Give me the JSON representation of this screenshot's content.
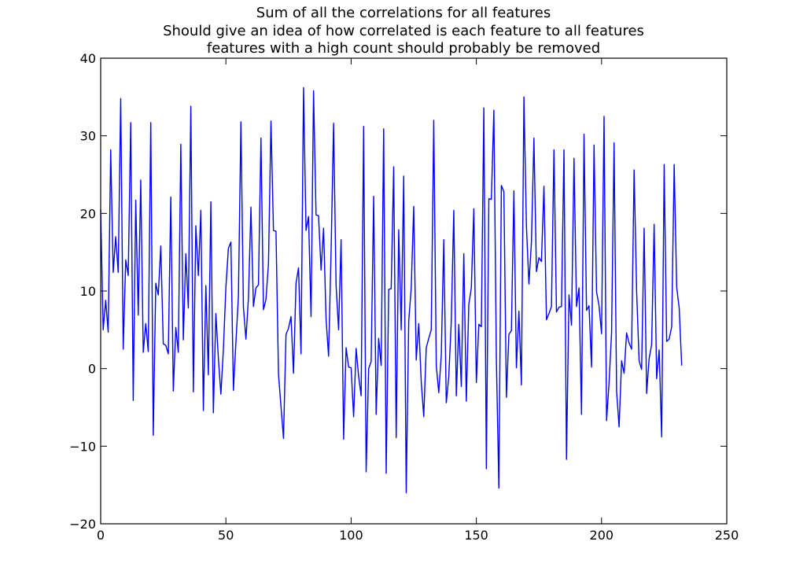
{
  "chart_data": {
    "type": "line",
    "title_lines": [
      "Sum of all the correlations for all features",
      "Should give an idea of how correlated is each feature to all features",
      "features with a high count should probably be removed"
    ],
    "xlabel": "",
    "ylabel": "",
    "xlim": [
      0,
      250
    ],
    "ylim": [
      -20,
      40
    ],
    "xticks": [
      0,
      50,
      100,
      150,
      200,
      250
    ],
    "xtick_labels": [
      "0",
      "50",
      "100",
      "150",
      "200",
      "250"
    ],
    "yticks": [
      -20,
      -10,
      0,
      10,
      20,
      30,
      40
    ],
    "ytick_labels": [
      "−20",
      "−10",
      "0",
      "10",
      "20",
      "30",
      "40"
    ],
    "grid": false,
    "line_color": "#0000ff",
    "series": [
      {
        "x_start": 0,
        "x_step": 1,
        "values": [
          20.5,
          5.0,
          8.8,
          4.7,
          28.2,
          12.4,
          17.0,
          12.4,
          34.8,
          2.5,
          14.0,
          12.0,
          31.7,
          -4.1,
          21.7,
          6.9,
          24.3,
          2.1,
          5.8,
          2.2,
          31.7,
          -8.6,
          11.0,
          9.5,
          15.8,
          3.2,
          3.0,
          1.9,
          22.1,
          -2.9,
          5.3,
          2.1,
          28.9,
          3.7,
          14.8,
          7.8,
          33.8,
          -3.0,
          18.4,
          12.0,
          20.4,
          -5.4,
          10.7,
          -0.8,
          21.5,
          -5.7,
          7.1,
          1.3,
          -3.3,
          2.5,
          10.5,
          15.5,
          16.3,
          -2.8,
          3.4,
          9.3,
          31.8,
          7.9,
          3.8,
          9.1,
          20.8,
          8.0,
          10.4,
          10.8,
          29.7,
          7.6,
          8.9,
          13.5,
          31.9,
          17.8,
          17.7,
          -0.7,
          -4.9,
          -9.0,
          4.4,
          5.2,
          6.7,
          -0.6,
          11.0,
          13.0,
          1.9,
          36.2,
          17.8,
          19.6,
          6.7,
          35.8,
          19.8,
          19.7,
          12.7,
          18.1,
          6.4,
          1.6,
          15.0,
          31.6,
          10.7,
          5.0,
          16.6,
          -9.1,
          2.7,
          0.2,
          0.1,
          -6.2,
          2.6,
          -1.0,
          -3.5,
          31.2,
          -13.3,
          0.0,
          0.9,
          22.2,
          -5.9,
          3.9,
          0.4,
          30.9,
          -13.5,
          10.2,
          10.3,
          26.0,
          -8.9,
          17.9,
          5.0,
          24.8,
          -16.0,
          6.1,
          10.4,
          20.9,
          1.1,
          5.8,
          -1.7,
          -6.2,
          2.7,
          3.9,
          5.0,
          32.0,
          0.4,
          -3.1,
          1.7,
          16.6,
          -4.4,
          -1.0,
          6.1,
          20.4,
          -3.5,
          5.7,
          -2.3,
          14.8,
          -4.2,
          8.3,
          10.4,
          20.6,
          -1.8,
          5.7,
          5.4,
          33.6,
          -12.9,
          21.9,
          21.8,
          33.3,
          1.2,
          -15.4,
          23.6,
          22.8,
          -3.7,
          4.4,
          4.9,
          22.9,
          0.1,
          7.4,
          -2.1,
          35.0,
          18.4,
          10.9,
          16.3,
          29.7,
          12.5,
          14.3,
          13.8,
          23.5,
          6.3,
          7.1,
          8.0,
          28.2,
          7.3,
          7.9,
          8.0,
          28.2,
          -11.7,
          9.5,
          5.6,
          27.1,
          8.0,
          10.4,
          -5.9,
          30.2,
          7.5,
          8.1,
          0.2,
          28.8,
          9.9,
          8.1,
          4.5,
          32.5,
          -6.7,
          -1.8,
          4.6,
          29.1,
          -2.9,
          -7.5,
          1.0,
          -0.6,
          4.6,
          3.3,
          2.5,
          25.6,
          10.0,
          1.0,
          -0.1,
          18.1,
          -3.2,
          1.3,
          3.1,
          18.6,
          -1.3,
          2.4,
          -8.8,
          26.3,
          3.5,
          3.8,
          5.4,
          26.3,
          10.5,
          7.8,
          0.4
        ]
      }
    ]
  }
}
